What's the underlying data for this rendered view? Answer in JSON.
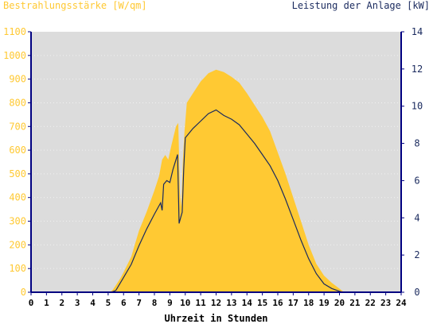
{
  "chart_data": {
    "type": "area",
    "title_left": "Bestrahlungsstärke [W/qm]",
    "title_right": "Leistung der Anlage [kW]",
    "xlabel": "Uhrzeit in Stunden",
    "xlim": [
      0,
      24
    ],
    "x_ticks": [
      0,
      1,
      2,
      3,
      4,
      5,
      6,
      7,
      8,
      9,
      10,
      11,
      12,
      13,
      14,
      15,
      16,
      17,
      18,
      19,
      20,
      21,
      22,
      23,
      24
    ],
    "y_left": {
      "lim": [
        0,
        1100
      ],
      "ticks": [
        0,
        100,
        200,
        300,
        400,
        500,
        600,
        700,
        800,
        900,
        1000,
        1100
      ]
    },
    "y_right": {
      "lim": [
        0,
        14
      ],
      "ticks": [
        0,
        2,
        4,
        6,
        8,
        10,
        12,
        14
      ]
    },
    "colors": {
      "plot_background": "#dcdcdc",
      "irradiance_fill": "#ffc933",
      "power_line": "#1a2a5e",
      "left_axis_text": "#ffc933",
      "right_axis_text": "#1a2a5e",
      "axis": "#000080",
      "grid": "#ffffff"
    },
    "series": [
      {
        "name": "Bestrahlungsstärke",
        "axis": "left",
        "style": "area",
        "points": [
          [
            0,
            0
          ],
          [
            5.1,
            0
          ],
          [
            5.3,
            10
          ],
          [
            5.5,
            30
          ],
          [
            5.8,
            60
          ],
          [
            6,
            85
          ],
          [
            6.5,
            150
          ],
          [
            7,
            260
          ],
          [
            7.5,
            340
          ],
          [
            8,
            430
          ],
          [
            8.3,
            490
          ],
          [
            8.5,
            560
          ],
          [
            8.7,
            580
          ],
          [
            8.9,
            560
          ],
          [
            9.1,
            620
          ],
          [
            9.4,
            700
          ],
          [
            9.55,
            715
          ],
          [
            9.65,
            420
          ],
          [
            9.75,
            360
          ],
          [
            9.85,
            560
          ],
          [
            9.95,
            680
          ],
          [
            10.1,
            800
          ],
          [
            10.5,
            840
          ],
          [
            11,
            890
          ],
          [
            11.5,
            925
          ],
          [
            12,
            940
          ],
          [
            12.5,
            930
          ],
          [
            13,
            910
          ],
          [
            13.5,
            885
          ],
          [
            14,
            840
          ],
          [
            14.5,
            790
          ],
          [
            15,
            740
          ],
          [
            15.5,
            680
          ],
          [
            16,
            590
          ],
          [
            16.5,
            500
          ],
          [
            17,
            400
          ],
          [
            17.5,
            300
          ],
          [
            18,
            200
          ],
          [
            18.5,
            120
          ],
          [
            19,
            70
          ],
          [
            19.5,
            40
          ],
          [
            20,
            15
          ],
          [
            20.3,
            0
          ],
          [
            24,
            0
          ]
        ]
      },
      {
        "name": "Leistung",
        "axis": "right",
        "style": "line",
        "points": [
          [
            0,
            0
          ],
          [
            5.2,
            0
          ],
          [
            5.5,
            0.1
          ],
          [
            6,
            0.8
          ],
          [
            6.5,
            1.5
          ],
          [
            7,
            2.5
          ],
          [
            7.5,
            3.4
          ],
          [
            8,
            4.2
          ],
          [
            8.4,
            4.8
          ],
          [
            8.5,
            4.4
          ],
          [
            8.6,
            5.8
          ],
          [
            8.8,
            6.0
          ],
          [
            9.0,
            5.9
          ],
          [
            9.2,
            6.6
          ],
          [
            9.5,
            7.4
          ],
          [
            9.6,
            3.7
          ],
          [
            9.7,
            4.0
          ],
          [
            9.8,
            4.3
          ],
          [
            9.9,
            6.6
          ],
          [
            10,
            8.3
          ],
          [
            10.2,
            8.5
          ],
          [
            10.5,
            8.8
          ],
          [
            11,
            9.2
          ],
          [
            11.5,
            9.6
          ],
          [
            12,
            9.8
          ],
          [
            12.5,
            9.5
          ],
          [
            13,
            9.3
          ],
          [
            13.5,
            9.0
          ],
          [
            14,
            8.5
          ],
          [
            14.5,
            8.0
          ],
          [
            15,
            7.4
          ],
          [
            15.5,
            6.8
          ],
          [
            16,
            6.0
          ],
          [
            16.5,
            5.0
          ],
          [
            17,
            3.9
          ],
          [
            17.5,
            2.8
          ],
          [
            18,
            1.8
          ],
          [
            18.5,
            1.0
          ],
          [
            19,
            0.45
          ],
          [
            19.5,
            0.2
          ],
          [
            20,
            0.05
          ],
          [
            20.2,
            0
          ],
          [
            24,
            0
          ]
        ]
      }
    ]
  }
}
